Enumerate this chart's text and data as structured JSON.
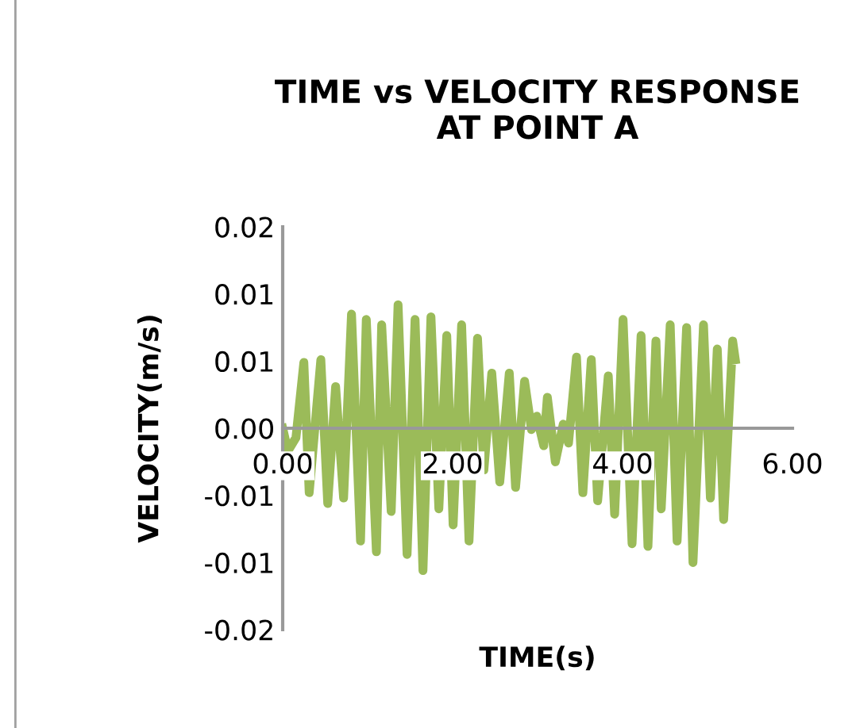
{
  "chart_data": {
    "type": "line",
    "title": "TIME vs VELOCITY RESPONSE\nAT POINT A",
    "xlabel": "TIME(s)",
    "ylabel": "VELOCITY(m/s)",
    "xlim": [
      0,
      6
    ],
    "xticks": [
      {
        "value": 0,
        "label": "0.00"
      },
      {
        "value": 2,
        "label": "2.00"
      },
      {
        "value": 4,
        "label": "4.00"
      },
      {
        "value": 6,
        "label": "6.00"
      }
    ],
    "ylim": [
      -0.015,
      0.015
    ],
    "yticks": [
      {
        "value": 0.015,
        "label": "0.02"
      },
      {
        "value": 0.01,
        "label": "0.01"
      },
      {
        "value": 0.005,
        "label": "0.01"
      },
      {
        "value": 0,
        "label": "0.00"
      },
      {
        "value": -0.005,
        "label": "-0.01"
      },
      {
        "value": -0.01,
        "label": "-0.01"
      },
      {
        "value": -0.015,
        "label": "-0.02"
      }
    ],
    "grid": false,
    "legend": false,
    "marker": "none",
    "line_style": "solid",
    "series": [
      {
        "color": "#9bbb59",
        "x": [
          0,
          0.062,
          0.156,
          0.249,
          0.312,
          0.449,
          0.53,
          0.623,
          0.717,
          0.81,
          0.916,
          0.984,
          1.103,
          1.165,
          1.277,
          1.358,
          1.464,
          1.558,
          1.651,
          1.745,
          1.838,
          1.931,
          2.006,
          2.106,
          2.193,
          2.293,
          2.368,
          2.461,
          2.555,
          2.667,
          2.741,
          2.847,
          2.928,
          2.991,
          3.072,
          3.115,
          3.209,
          3.302,
          3.364,
          3.458,
          3.533,
          3.632,
          3.707,
          3.832,
          3.907,
          4.006,
          4.112,
          4.218,
          4.299,
          4.393,
          4.455,
          4.561,
          4.642,
          4.754,
          4.829,
          4.953,
          5.034,
          5.115,
          5.19,
          5.296,
          5.327
        ],
        "values": [
          0,
          -0.0017,
          -0.0007,
          0.0049,
          -0.0048,
          0.0051,
          -0.0056,
          0.0031,
          -0.0052,
          0.0085,
          -0.0084,
          0.0081,
          -0.0092,
          0.0077,
          -0.0062,
          0.0092,
          -0.0094,
          0.0081,
          -0.0106,
          0.0083,
          -0.006,
          0.0069,
          -0.0072,
          0.0077,
          -0.0084,
          0.0067,
          -0.0031,
          0.0041,
          -0.004,
          0.0041,
          -0.0044,
          0.0035,
          -0.0001,
          0.0009,
          -0.0013,
          0.0023,
          -0.0025,
          0.0003,
          -0.0011,
          0.0053,
          -0.0048,
          0.0051,
          -0.0054,
          0.0039,
          -0.0064,
          0.0081,
          -0.0086,
          0.0069,
          -0.0088,
          0.0065,
          -0.006,
          0.0077,
          -0.0084,
          0.0075,
          -0.01,
          0.0077,
          -0.0052,
          0.0059,
          -0.0068,
          0.0065,
          0.0051
        ]
      }
    ]
  }
}
